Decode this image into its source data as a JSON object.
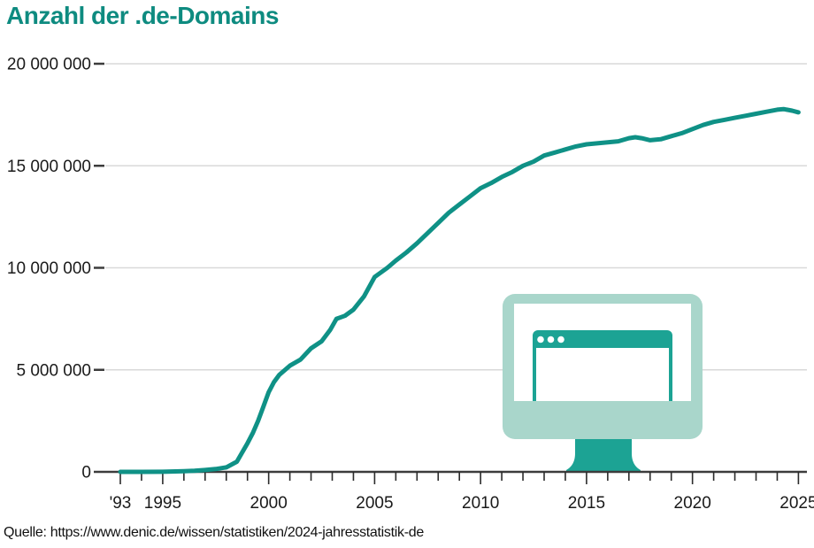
{
  "title": "Anzahl der .de-Domains",
  "source": "Quelle: https://www.denic.de/wissen/statistiken/2024-jahresstatistik-de",
  "colors": {
    "title": "#0e8b80",
    "line": "#0f9186",
    "grid": "#d9d9d9",
    "axis": "#3c3c3c",
    "tick": "#2b2b2b",
    "text": "#1a1a1a",
    "icon_light": "#a9d6cb",
    "icon_bright": "#1ca394",
    "icon_screen": "#ffffff"
  },
  "icon": {
    "name": "monitor-with-browser-window-icon"
  },
  "chart_data": {
    "type": "line",
    "title": "Anzahl der .de-Domains",
    "xlabel": "",
    "ylabel": "",
    "xlim": [
      1993,
      2025
    ],
    "ylim": [
      0,
      20000000
    ],
    "grid": "horizontal",
    "legend": "none",
    "y_ticks": [
      {
        "value": 0,
        "label": "0"
      },
      {
        "value": 5000000,
        "label": "5 000 000"
      },
      {
        "value": 10000000,
        "label": "10 000 000"
      },
      {
        "value": 15000000,
        "label": "15 000 000"
      },
      {
        "value": 20000000,
        "label": "20 000 000"
      }
    ],
    "x_major_ticks": [
      {
        "year": 1993,
        "label": "'93"
      },
      {
        "year": 1995,
        "label": "1995"
      },
      {
        "year": 2000,
        "label": "2000"
      },
      {
        "year": 2005,
        "label": "2005"
      },
      {
        "year": 2010,
        "label": "2010"
      },
      {
        "year": 2015,
        "label": "2015"
      },
      {
        "year": 2020,
        "label": "2020"
      },
      {
        "year": 2025,
        "label": "2025"
      }
    ],
    "x_minor_tick_every": 1,
    "series": [
      {
        "name": ".de-Domains",
        "x": [
          1993,
          1994,
          1995,
          1996,
          1996.5,
          1997,
          1997.5,
          1998,
          1998.5,
          1999,
          1999.25,
          1999.5,
          1999.75,
          2000,
          2000.25,
          2000.5,
          2001,
          2001.5,
          2002,
          2002.5,
          2002.9,
          2003.2,
          2003.6,
          2004,
          2004.5,
          2005,
          2005.6,
          2006,
          2006.5,
          2007,
          2007.5,
          2008,
          2008.5,
          2009,
          2009.5,
          2010,
          2010.5,
          2011,
          2011.5,
          2012,
          2012.5,
          2013,
          2013.5,
          2014,
          2014.5,
          2015,
          2015.5,
          2016,
          2016.5,
          2017,
          2017.3,
          2017.6,
          2018,
          2018.5,
          2019,
          2019.5,
          2020,
          2020.5,
          2021,
          2021.5,
          2022,
          2022.5,
          2023,
          2023.5,
          2024,
          2024.3,
          2024.7,
          2025
        ],
        "values": [
          1000,
          2000,
          6000,
          30000,
          50000,
          90000,
          140000,
          220000,
          500000,
          1400000,
          1900000,
          2500000,
          3200000,
          3900000,
          4400000,
          4750000,
          5200000,
          5500000,
          6050000,
          6400000,
          6950000,
          7500000,
          7650000,
          7950000,
          8600000,
          9550000,
          10000000,
          10350000,
          10750000,
          11200000,
          11700000,
          12200000,
          12700000,
          13100000,
          13500000,
          13900000,
          14150000,
          14450000,
          14700000,
          15000000,
          15200000,
          15500000,
          15650000,
          15800000,
          15950000,
          16050000,
          16100000,
          16150000,
          16200000,
          16350000,
          16400000,
          16350000,
          16250000,
          16300000,
          16450000,
          16600000,
          16800000,
          17000000,
          17150000,
          17250000,
          17350000,
          17450000,
          17550000,
          17650000,
          17750000,
          17780000,
          17700000,
          17620000
        ]
      }
    ]
  }
}
